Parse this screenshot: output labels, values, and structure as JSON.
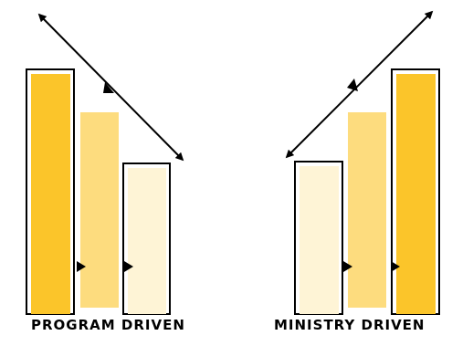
{
  "panels": [
    {
      "label": "PROGRAM DRIVEN",
      "bars_order": [
        "dark",
        "medium",
        "light"
      ],
      "arrow_direction": "down-right"
    },
    {
      "label": "MINISTRY DRIVEN",
      "bars_order": [
        "light",
        "medium",
        "dark"
      ],
      "arrow_direction": "up-right"
    }
  ],
  "colors": {
    "dark": "#FBC52A",
    "medium": "#FDDC7E",
    "light": "#FEF4D6",
    "outline": "#000000",
    "background": "#FFFFFF"
  }
}
